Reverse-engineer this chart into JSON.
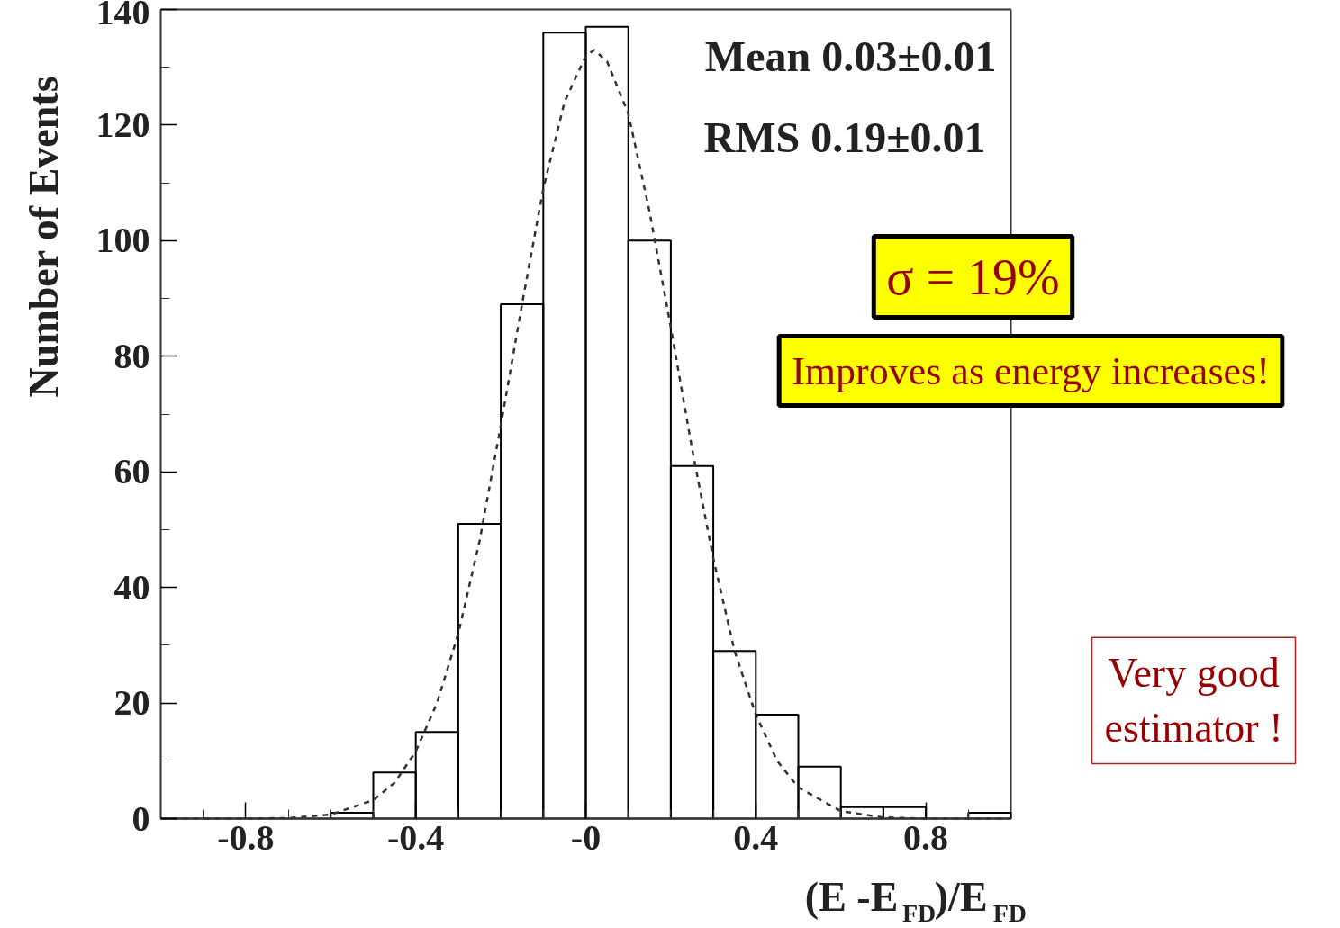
{
  "chart_data": {
    "type": "histogram",
    "xlabel": "(E -E$_{FD}$)/E$_{FD}$",
    "ylabel": "Number of Events",
    "xlim": [
      -1,
      1
    ],
    "ylim": [
      0,
      140
    ],
    "xticks": [
      {
        "value": -0.9,
        "label": null
      },
      {
        "value": -0.8,
        "label": "-0.8"
      },
      {
        "value": -0.7,
        "label": null
      },
      {
        "value": -0.6,
        "label": null
      },
      {
        "value": -0.5,
        "label": null
      },
      {
        "value": -0.4,
        "label": "-0.4"
      },
      {
        "value": -0.3,
        "label": null
      },
      {
        "value": -0.2,
        "label": null
      },
      {
        "value": -0.1,
        "label": null
      },
      {
        "value": 0,
        "label": "-0"
      },
      {
        "value": 0.1,
        "label": null
      },
      {
        "value": 0.2,
        "label": null
      },
      {
        "value": 0.3,
        "label": null
      },
      {
        "value": 0.4,
        "label": "0.4"
      },
      {
        "value": 0.5,
        "label": null
      },
      {
        "value": 0.6,
        "label": null
      },
      {
        "value": 0.7,
        "label": null
      },
      {
        "value": 0.8,
        "label": "0.8"
      },
      {
        "value": 0.9,
        "label": null
      }
    ],
    "yticks": [
      0,
      {
        "value": 10,
        "label": null
      },
      20,
      {
        "value": 30,
        "label": null
      },
      40,
      {
        "value": 50,
        "label": null
      },
      60,
      {
        "value": 70,
        "label": null
      },
      80,
      {
        "value": 90,
        "label": null
      },
      100,
      {
        "value": 110,
        "label": null
      },
      120,
      {
        "value": 130,
        "label": null
      },
      140
    ],
    "grid": false,
    "series": [
      {
        "color": "#000000",
        "bins": [
          -1,
          -0.9,
          -0.8,
          -0.7,
          -0.6,
          -0.5,
          -0.4,
          -0.3,
          -0.2,
          -0.1,
          0,
          0.1,
          0.2,
          0.3,
          0.4,
          0.5,
          0.6,
          0.7,
          0.8,
          0.9,
          1
        ],
        "values": [
          0,
          0,
          0,
          0,
          1,
          8,
          15,
          51,
          89,
          136,
          137,
          100,
          61,
          29,
          18,
          9,
          2,
          2,
          0,
          1
        ]
      },
      {
        "type": "line",
        "color": "#333333",
        "line_style": "dashed",
        "x": [
          -1,
          -0.8,
          -0.7,
          -0.6,
          -0.5,
          -0.45,
          -0.4,
          -0.35,
          -0.3,
          -0.25,
          -0.2,
          -0.15,
          -0.1,
          -0.05,
          0,
          0.02,
          0.05,
          0.1,
          0.15,
          0.2,
          0.25,
          0.3,
          0.35,
          0.4,
          0.45,
          0.5,
          0.6,
          0.7,
          0.8,
          1
        ],
        "values": [
          0,
          0,
          0.1,
          0.7,
          3.2,
          6.2,
          11.6,
          20,
          32,
          48,
          68,
          89,
          109,
          124,
          132,
          133,
          131,
          122,
          105,
          85,
          64,
          45,
          29,
          18,
          10,
          5.4,
          1.3,
          0.2,
          0,
          0
        ]
      }
    ],
    "annotations": [
      "Mean 0.03±0.01",
      "RMS  0.19±0.01",
      "σ = 19%",
      "Improves as energy increases!",
      "Very good estimator !"
    ]
  }
}
